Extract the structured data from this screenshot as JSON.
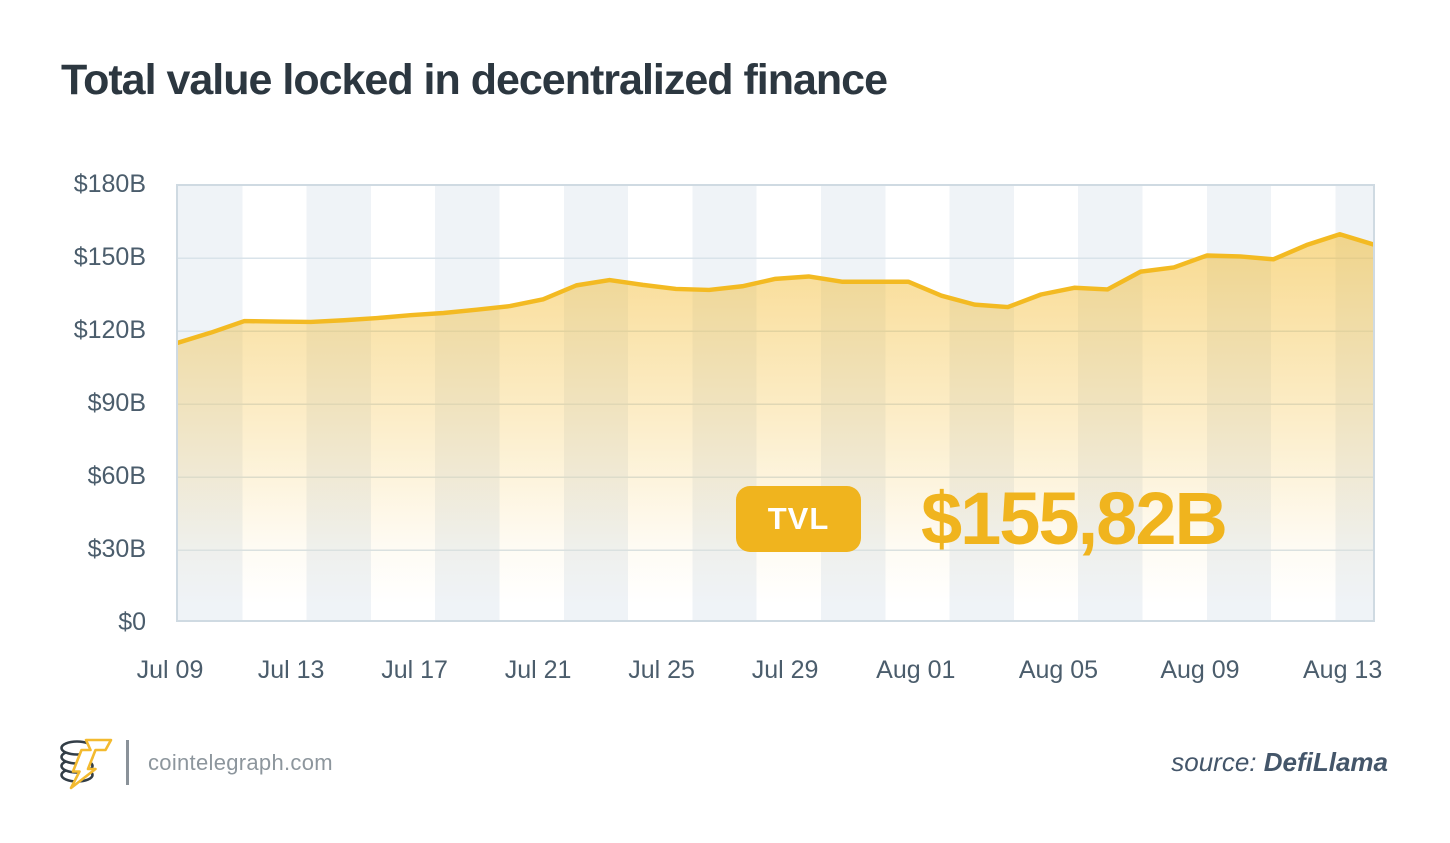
{
  "title": "Total value locked in decentralized finance",
  "tvl_badge": {
    "label": "TVL",
    "value": "$155,82B"
  },
  "footer": {
    "site": "cointelegraph.com",
    "source_prefix": "source:",
    "source_name": "DefiLlama",
    "logo": "cointelegraph-coin-bolt-logo"
  },
  "colors": {
    "accent_gold": "#f0b41e",
    "line_gold": "#f3ba22",
    "title_text": "#2c3740",
    "axis_text": "#4b5d6c",
    "gridline": "#d9e3ea",
    "stripe": "#eff3f7",
    "plot_border": "#cfdae2",
    "site_text": "#8d969d",
    "source_text": "#44566a"
  },
  "chart_data": {
    "type": "area",
    "title": "Total value locked in decentralized finance",
    "unit": "USD billions",
    "x": [
      "Jul 09",
      "Jul 10",
      "Jul 11",
      "Jul 12",
      "Jul 13",
      "Jul 14",
      "Jul 15",
      "Jul 16",
      "Jul 17",
      "Jul 18",
      "Jul 19",
      "Jul 20",
      "Jul 21",
      "Jul 22",
      "Jul 23",
      "Jul 24",
      "Jul 25",
      "Jul 26",
      "Jul 27",
      "Jul 28",
      "Jul 29",
      "Jul 30",
      "Jul 31",
      "Aug 01",
      "Aug 02",
      "Aug 03",
      "Aug 04",
      "Aug 05",
      "Aug 06",
      "Aug 07",
      "Aug 08",
      "Aug 09",
      "Aug 10",
      "Aug 11",
      "Aug 12",
      "Aug 13",
      "Aug 14"
    ],
    "values": [
      115.0,
      119.2,
      124.0,
      123.8,
      123.6,
      124.3,
      125.2,
      126.4,
      127.3,
      128.7,
      130.2,
      133.0,
      138.8,
      141.0,
      139.0,
      137.3,
      136.9,
      138.4,
      141.5,
      142.5,
      140.3,
      140.3,
      140.3,
      134.5,
      130.8,
      129.8,
      135.0,
      137.8,
      137.1,
      144.5,
      146.2,
      151.2,
      150.8,
      149.6,
      155.5,
      160.0,
      155.8
    ],
    "latest_label": "TVL",
    "latest_value": "$155,82B",
    "ylim": [
      0,
      180
    ],
    "y_ticks": [
      "$180B",
      "$150B",
      "$120B",
      "$90B",
      "$60B",
      "$30B",
      "$0"
    ],
    "y_tick_values": [
      180,
      150,
      120,
      90,
      60,
      30,
      0
    ],
    "x_tick_labels": [
      "Jul 09",
      "Jul 13",
      "Jul 17",
      "Jul 21",
      "Jul 25",
      "Jul 29",
      "Aug 01",
      "Aug 05",
      "Aug 09",
      "Aug 13"
    ],
    "x_tick_pos_pct": [
      -0.5,
      9.6,
      19.9,
      30.2,
      40.5,
      50.8,
      61.7,
      73.6,
      85.4,
      97.3
    ],
    "grid": "horizontal-only",
    "legend": "none",
    "background": "alternating vertical stripes"
  }
}
